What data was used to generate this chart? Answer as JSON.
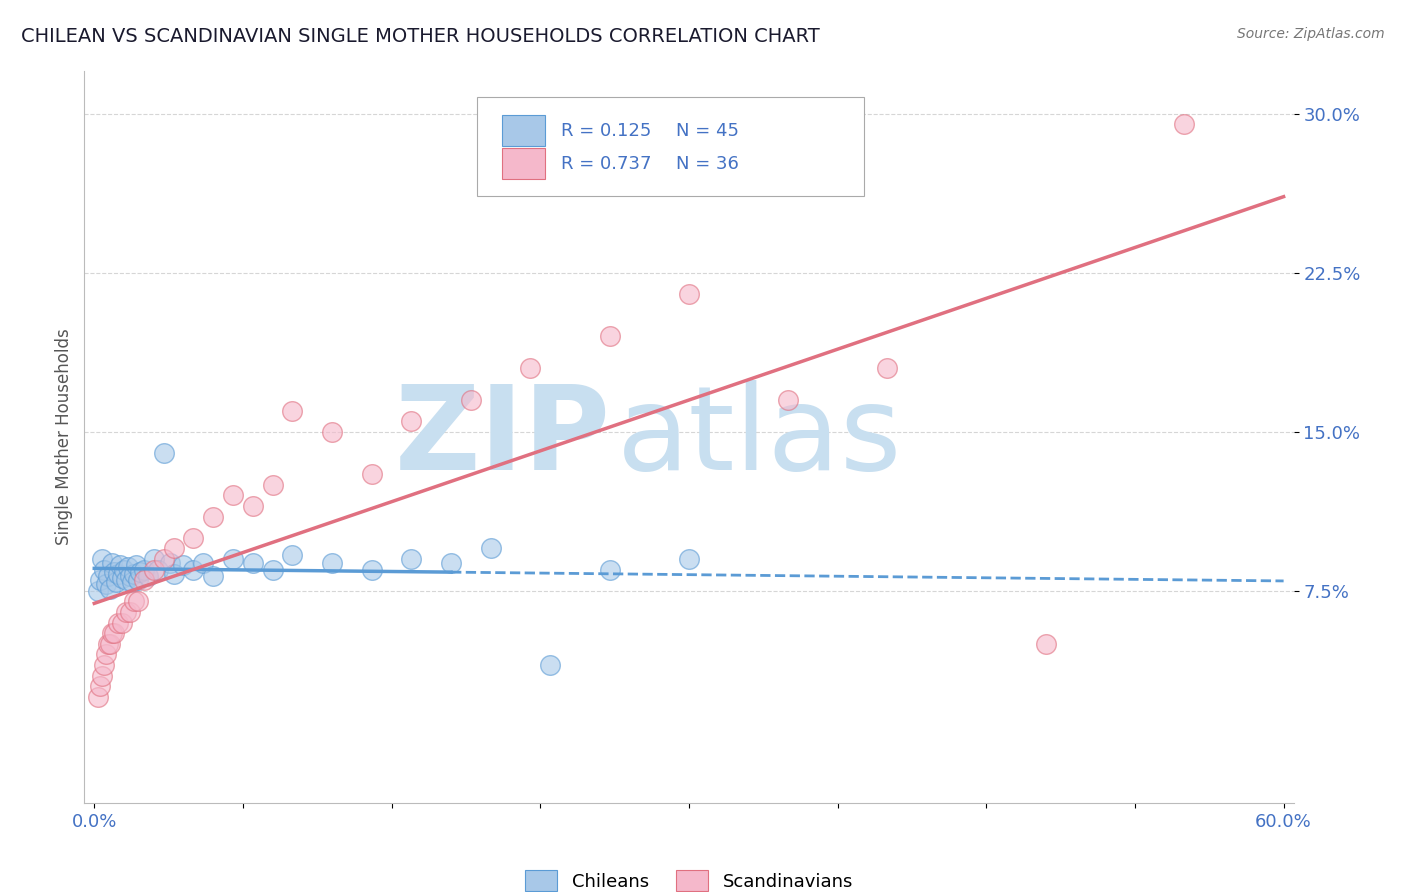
{
  "title": "CHILEAN VS SCANDINAVIAN SINGLE MOTHER HOUSEHOLDS CORRELATION CHART",
  "source": "Source: ZipAtlas.com",
  "ylabel": "Single Mother Households",
  "xlim": [
    -0.005,
    0.605
  ],
  "ylim": [
    -0.025,
    0.32
  ],
  "xticks": [
    0.0,
    0.075,
    0.15,
    0.225,
    0.3,
    0.375,
    0.45,
    0.525,
    0.6
  ],
  "xtick_labels": [
    "0.0%",
    "",
    "",
    "",
    "",
    "",
    "",
    "",
    "60.0%"
  ],
  "yticks": [
    0.075,
    0.15,
    0.225,
    0.3
  ],
  "ytick_labels": [
    "7.5%",
    "15.0%",
    "22.5%",
    "30.0%"
  ],
  "legend_r_chileans": "R = 0.125",
  "legend_n_chileans": "N = 45",
  "legend_r_scandinavians": "R = 0.737",
  "legend_n_scandinavians": "N = 36",
  "chilean_color": "#a8c8e8",
  "scandinavian_color": "#f5b8cb",
  "chilean_line_color": "#5b9bd5",
  "scandinavian_line_color": "#e07080",
  "chilean_scatter_x": [
    0.002,
    0.003,
    0.004,
    0.005,
    0.006,
    0.007,
    0.008,
    0.009,
    0.01,
    0.011,
    0.012,
    0.013,
    0.014,
    0.015,
    0.016,
    0.017,
    0.018,
    0.019,
    0.02,
    0.021,
    0.022,
    0.023,
    0.025,
    0.027,
    0.03,
    0.032,
    0.035,
    0.038,
    0.04,
    0.045,
    0.05,
    0.055,
    0.06,
    0.07,
    0.08,
    0.09,
    0.1,
    0.12,
    0.14,
    0.16,
    0.18,
    0.2,
    0.23,
    0.26,
    0.3
  ],
  "chilean_scatter_y": [
    0.075,
    0.08,
    0.09,
    0.085,
    0.078,
    0.082,
    0.076,
    0.088,
    0.084,
    0.079,
    0.083,
    0.087,
    0.081,
    0.085,
    0.08,
    0.086,
    0.082,
    0.079,
    0.083,
    0.087,
    0.08,
    0.084,
    0.085,
    0.082,
    0.09,
    0.085,
    0.14,
    0.088,
    0.083,
    0.087,
    0.085,
    0.088,
    0.082,
    0.09,
    0.088,
    0.085,
    0.092,
    0.088,
    0.085,
    0.09,
    0.088,
    0.095,
    0.04,
    0.085,
    0.09
  ],
  "scandinavian_scatter_x": [
    0.002,
    0.003,
    0.004,
    0.005,
    0.006,
    0.007,
    0.008,
    0.009,
    0.01,
    0.012,
    0.014,
    0.016,
    0.018,
    0.02,
    0.022,
    0.025,
    0.03,
    0.035,
    0.04,
    0.05,
    0.06,
    0.07,
    0.08,
    0.09,
    0.1,
    0.12,
    0.14,
    0.16,
    0.19,
    0.22,
    0.26,
    0.3,
    0.35,
    0.4,
    0.48,
    0.55
  ],
  "scandinavian_scatter_y": [
    0.025,
    0.03,
    0.035,
    0.04,
    0.045,
    0.05,
    0.05,
    0.055,
    0.055,
    0.06,
    0.06,
    0.065,
    0.065,
    0.07,
    0.07,
    0.08,
    0.085,
    0.09,
    0.095,
    0.1,
    0.11,
    0.12,
    0.115,
    0.125,
    0.16,
    0.15,
    0.13,
    0.155,
    0.165,
    0.18,
    0.195,
    0.215,
    0.165,
    0.18,
    0.05,
    0.295
  ],
  "watermark_zip": "ZIP",
  "watermark_atlas": "atlas",
  "watermark_color": "#c8dff0",
  "background_color": "#ffffff",
  "grid_color": "#cccccc",
  "title_color": "#1a1a2e",
  "tick_label_color": "#4472c4",
  "legend_text_color": "#000000",
  "legend_rn_color": "#4472c4"
}
